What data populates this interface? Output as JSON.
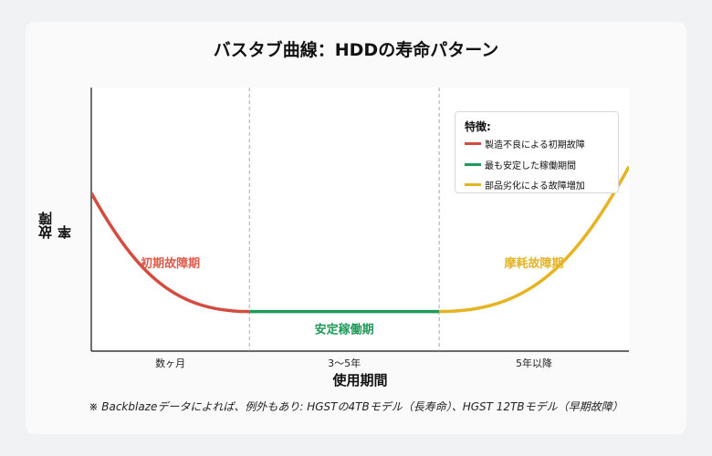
{
  "chart_data": {
    "type": "line",
    "title": "バスタブ曲線：HDDの寿命パターン",
    "xlabel": "使用期間",
    "ylabel": "故障率",
    "categories": [
      "数ヶ月",
      "3～5年",
      "5年以降"
    ],
    "phases": [
      {
        "name": "初期故障期",
        "color": "#d44b3f",
        "label_color": "#e05a4a",
        "x_range": [
          0,
          1
        ],
        "y_start": 6.0,
        "y_end": 1.5
      },
      {
        "name": "安定稼働期",
        "color": "#1e9a57",
        "label_color": "#1e9a57",
        "x_range": [
          1,
          2.2
        ],
        "y_start": 1.5,
        "y_end": 1.5
      },
      {
        "name": "摩耗故障期",
        "color": "#e6b323",
        "label_color": "#e6b323",
        "x_range": [
          2.2,
          3.4
        ],
        "y_start": 1.5,
        "y_end": 7.0
      }
    ],
    "phase_boundaries": [
      1,
      2.2
    ],
    "xlim": [
      0,
      3.4
    ],
    "ylim": [
      0,
      10
    ],
    "legend": {
      "title": "特徴:",
      "placement": "top-right",
      "items": [
        {
          "label": "製造不良による初期故障",
          "color": "#d44b3f"
        },
        {
          "label": "最も安定した稼働期間",
          "color": "#1e9a57"
        },
        {
          "label": "部品劣化による故障増加",
          "color": "#e6b323"
        }
      ]
    },
    "grid": false
  },
  "footnote": "※ Backblazeデータによれば、例外もあり: HGSTの4TBモデル（長寿命）、HGST 12TBモデル（早期故障）"
}
